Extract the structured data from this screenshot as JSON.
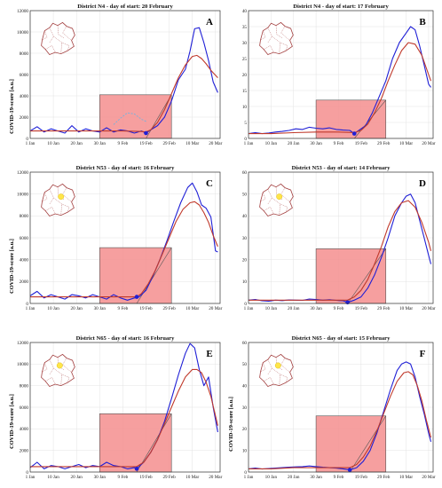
{
  "figure": {
    "y_axis_label": "COVID-19-score [a.u.]"
  },
  "colors": {
    "observed": "#1f1fd6",
    "fitted": "#c0392b",
    "shade_fill": "#f58e8e",
    "shade_stroke": "#555555",
    "dashed": "#74b3e0",
    "start_marker": "#1f1fd6",
    "map_outline": "#a34040",
    "map_highlight": "#ffe54a"
  },
  "chart_data": [
    {
      "type": "line",
      "letter": "A",
      "title": "District N4 - day of start: 20 February",
      "x_ticks": [
        "1 Jan",
        "10 Jan",
        "20 Jan",
        "30 Jan",
        "9 Feb",
        "19 Feb",
        "29 Feb",
        "10 Mar",
        "20 Mar"
      ],
      "y_ticks": [
        "0",
        "2000",
        "4000",
        "6000",
        "8000",
        "10000",
        "12000"
      ],
      "ylim": [
        0,
        12000
      ],
      "highlight": null,
      "start_point": [
        50,
        500
      ],
      "shade_top": 4100,
      "shade_x": [
        30,
        61
      ],
      "shade_apex_x": 50,
      "series": [
        {
          "role": "observed",
          "x": [
            0,
            3,
            6,
            9,
            12,
            15,
            18,
            21,
            24,
            27,
            30,
            33,
            36,
            39,
            42,
            45,
            48,
            50,
            52,
            55,
            58,
            61,
            64,
            67,
            69,
            71,
            73,
            75,
            77,
            79,
            81
          ],
          "y": [
            700,
            1100,
            600,
            900,
            700,
            500,
            1200,
            600,
            900,
            700,
            600,
            1000,
            600,
            800,
            700,
            500,
            700,
            500,
            800,
            1200,
            2000,
            3500,
            5500,
            6500,
            8200,
            10300,
            10400,
            9000,
            7300,
            5300,
            4300
          ]
        },
        {
          "role": "fitted",
          "x": [
            0,
            10,
            20,
            30,
            40,
            48,
            50,
            52,
            55,
            58,
            61,
            64,
            67,
            70,
            72,
            74,
            76,
            78,
            81
          ],
          "y": [
            700,
            700,
            700,
            700,
            700,
            650,
            600,
            800,
            1500,
            2700,
            4200,
            5700,
            6900,
            7700,
            7800,
            7500,
            7000,
            6400,
            5700
          ]
        },
        {
          "role": "dashed",
          "x": [
            36,
            39,
            42,
            45,
            48,
            50
          ],
          "y": [
            1300,
            1900,
            2400,
            2300,
            1800,
            1600
          ]
        }
      ]
    },
    {
      "type": "line",
      "letter": "B",
      "title": "District N4 - day of start: 17 February",
      "x_ticks": [
        "1 Jan",
        "10 Jan",
        "20 Jan",
        "30 Jan",
        "9 Feb",
        "19 Feb",
        "29 Feb",
        "10 Mar",
        "20 Mar"
      ],
      "y_ticks": [
        "0",
        "5",
        "10",
        "15",
        "20",
        "25",
        "30",
        "35",
        "40"
      ],
      "ylim": [
        0,
        40
      ],
      "highlight": null,
      "start_point": [
        47,
        1.5
      ],
      "shade_top": 12,
      "shade_x": [
        30,
        61
      ],
      "shade_apex_x": 47,
      "series": [
        {
          "role": "observed",
          "x": [
            0,
            3,
            6,
            9,
            12,
            15,
            18,
            21,
            24,
            27,
            30,
            33,
            36,
            39,
            42,
            45,
            47,
            49,
            52,
            55,
            58,
            61,
            64,
            67,
            70,
            72,
            74,
            76,
            78,
            80,
            81
          ],
          "y": [
            1.5,
            1.8,
            1.5,
            1.7,
            2.0,
            2.2,
            2.5,
            3.0,
            2.8,
            3.5,
            3.2,
            3.0,
            3.3,
            2.8,
            2.6,
            2.5,
            1.5,
            2.5,
            4.0,
            8.0,
            13.0,
            18.0,
            25.0,
            30.0,
            33.0,
            35.0,
            34.0,
            29.0,
            23.0,
            17.0,
            16.0
          ]
        },
        {
          "role": "fitted",
          "x": [
            0,
            10,
            20,
            30,
            40,
            47,
            50,
            53,
            56,
            59,
            62,
            65,
            68,
            71,
            74,
            77,
            80,
            81
          ],
          "y": [
            1.5,
            1.5,
            1.8,
            2.0,
            2.0,
            1.8,
            2.5,
            4.5,
            8.0,
            12.5,
            18.0,
            23.0,
            27.5,
            30.0,
            29.5,
            26.0,
            20.0,
            18.0
          ]
        }
      ]
    },
    {
      "type": "line",
      "letter": "C",
      "title": "District N53 - day of start: 16 February",
      "x_ticks": [
        "1 Jan",
        "10 Jan",
        "20 Jan",
        "30 Jan",
        "9 Feb",
        "19 Feb",
        "29 Feb",
        "10 Mar",
        "20 Mar"
      ],
      "y_ticks": [
        "0",
        "2000",
        "4000",
        "6000",
        "8000",
        "10000",
        "12000"
      ],
      "ylim": [
        0,
        12000
      ],
      "highlight": [
        0.58,
        0.42
      ],
      "start_point": [
        46,
        600
      ],
      "shade_top": 5100,
      "shade_x": [
        30,
        61
      ],
      "shade_apex_x": 46,
      "series": [
        {
          "role": "observed",
          "x": [
            0,
            3,
            6,
            9,
            12,
            15,
            18,
            21,
            24,
            27,
            30,
            33,
            36,
            39,
            42,
            45,
            47,
            50,
            53,
            56,
            59,
            62,
            65,
            68,
            70,
            72,
            74,
            76,
            78,
            80,
            81
          ],
          "y": [
            700,
            1100,
            500,
            800,
            600,
            400,
            800,
            700,
            500,
            800,
            600,
            400,
            800,
            500,
            300,
            500,
            600,
            1200,
            2500,
            4000,
            5700,
            7500,
            9200,
            10600,
            11000,
            10200,
            9000,
            8700,
            7900,
            4800,
            4700
          ]
        },
        {
          "role": "fitted",
          "x": [
            0,
            10,
            20,
            30,
            40,
            46,
            48,
            51,
            54,
            57,
            60,
            63,
            66,
            69,
            71,
            73,
            75,
            77,
            79,
            81
          ],
          "y": [
            600,
            600,
            600,
            600,
            600,
            600,
            900,
            1800,
            3000,
            4500,
            6000,
            7500,
            8600,
            9200,
            9300,
            9000,
            8300,
            7400,
            6200,
            5200
          ]
        }
      ]
    },
    {
      "type": "line",
      "letter": "D",
      "title": "District N53 - day of start: 14 February",
      "x_ticks": [
        "1 Jan",
        "10 Jan",
        "20 Jan",
        "30 Jan",
        "9 Feb",
        "19 Feb",
        "29 Feb",
        "10 Mar",
        "20 Mar"
      ],
      "y_ticks": [
        "0",
        "10",
        "20",
        "30",
        "40",
        "50",
        "60"
      ],
      "ylim": [
        0,
        60
      ],
      "highlight": [
        0.58,
        0.42
      ],
      "start_point": [
        44,
        0.5
      ],
      "shade_top": 25,
      "shade_x": [
        30,
        61
      ],
      "shade_apex_x": 44,
      "series": [
        {
          "role": "observed",
          "x": [
            0,
            3,
            6,
            9,
            12,
            15,
            18,
            21,
            24,
            27,
            30,
            33,
            36,
            39,
            42,
            44,
            47,
            50,
            53,
            56,
            59,
            62,
            65,
            68,
            70,
            72,
            74,
            76,
            78,
            80,
            81
          ],
          "y": [
            1.5,
            1.8,
            1.2,
            1.0,
            1.5,
            1.3,
            1.6,
            1.5,
            1.4,
            2.0,
            1.8,
            1.5,
            1.7,
            1.4,
            1.2,
            0.5,
            1.5,
            3.0,
            7.0,
            13.0,
            21.0,
            30.0,
            40.0,
            46.0,
            49.0,
            50.0,
            46.0,
            38.0,
            30.0,
            22.0,
            18.0
          ]
        },
        {
          "role": "fitted",
          "x": [
            0,
            10,
            20,
            30,
            40,
            44,
            47,
            50,
            53,
            56,
            59,
            62,
            65,
            68,
            71,
            74,
            77,
            80,
            81
          ],
          "y": [
            1.5,
            1.5,
            1.5,
            1.5,
            1.5,
            1.5,
            3.0,
            6.0,
            11.0,
            18.0,
            26.0,
            35.0,
            42.0,
            46.0,
            47.0,
            44.0,
            37.0,
            28.0,
            24.0
          ]
        }
      ]
    },
    {
      "type": "line",
      "letter": "E",
      "title": "District N65 - day of start: 16 February",
      "x_ticks": [
        "1 Jan",
        "10 Jan",
        "20 Jan",
        "30 Jan",
        "9 Feb",
        "19 Feb",
        "29 Feb",
        "10 Mar",
        "20 Mar"
      ],
      "y_ticks": [
        "0",
        "2000",
        "4000",
        "6000",
        "8000",
        "10000",
        "12000"
      ],
      "ylim": [
        0,
        12000
      ],
      "highlight": [
        0.55,
        0.38
      ],
      "start_point": [
        46,
        300
      ],
      "shade_top": 5400,
      "shade_x": [
        30,
        61
      ],
      "shade_apex_x": 46,
      "series": [
        {
          "role": "observed",
          "x": [
            0,
            3,
            6,
            9,
            12,
            15,
            18,
            21,
            24,
            27,
            30,
            33,
            36,
            39,
            42,
            45,
            46,
            49,
            52,
            55,
            58,
            61,
            64,
            67,
            69,
            71,
            73,
            75,
            77,
            79,
            81
          ],
          "y": [
            400,
            900,
            300,
            600,
            500,
            300,
            500,
            700,
            400,
            600,
            500,
            900,
            600,
            500,
            300,
            400,
            300,
            900,
            1800,
            3000,
            4700,
            6800,
            9000,
            11000,
            11900,
            11500,
            9500,
            8000,
            8800,
            6000,
            3700
          ]
        },
        {
          "role": "fitted",
          "x": [
            0,
            10,
            20,
            30,
            40,
            46,
            49,
            52,
            55,
            58,
            61,
            64,
            67,
            70,
            72,
            74,
            76,
            78,
            81
          ],
          "y": [
            500,
            500,
            500,
            500,
            500,
            500,
            900,
            1800,
            3000,
            4500,
            6000,
            7500,
            8800,
            9500,
            9500,
            9200,
            8300,
            7000,
            4300
          ]
        }
      ]
    },
    {
      "type": "line",
      "letter": "F",
      "title": "District N65 - day of start: 15 February",
      "x_ticks": [
        "1 Jan",
        "10 Jan",
        "20 Jan",
        "30 Jan",
        "9 Feb",
        "19 Feb",
        "29 Feb",
        "10 Mar",
        "20 Mar"
      ],
      "y_ticks": [
        "0",
        "10",
        "20",
        "30",
        "40",
        "50",
        "60"
      ],
      "ylim": [
        0,
        60
      ],
      "highlight": [
        0.55,
        0.38
      ],
      "start_point": [
        45,
        1
      ],
      "shade_top": 26,
      "shade_x": [
        30,
        61
      ],
      "shade_apex_x": 45,
      "series": [
        {
          "role": "observed",
          "x": [
            0,
            3,
            6,
            9,
            12,
            15,
            18,
            21,
            24,
            27,
            30,
            33,
            36,
            39,
            42,
            45,
            48,
            51,
            54,
            57,
            60,
            63,
            66,
            68,
            70,
            72,
            74,
            76,
            78,
            80,
            81
          ],
          "y": [
            1.5,
            1.8,
            1.4,
            1.6,
            1.8,
            2.0,
            2.2,
            2.4,
            2.5,
            2.8,
            2.5,
            2.2,
            2.0,
            1.8,
            1.5,
            1.0,
            2.0,
            5.0,
            10.0,
            18.0,
            28.0,
            38.0,
            47.0,
            50.0,
            51.0,
            50.0,
            44.0,
            35.0,
            27.0,
            18.0,
            14.0
          ]
        },
        {
          "role": "fitted",
          "x": [
            0,
            10,
            20,
            30,
            40,
            45,
            48,
            51,
            54,
            57,
            60,
            63,
            66,
            69,
            71,
            73,
            75,
            77,
            79,
            81
          ],
          "y": [
            1.5,
            1.5,
            2.0,
            2.0,
            2.0,
            2.0,
            3.5,
            7.0,
            12.0,
            19.0,
            27.0,
            35.0,
            42.0,
            46.0,
            46.5,
            45.0,
            40.0,
            33.0,
            24.0,
            16.0
          ]
        }
      ]
    }
  ]
}
